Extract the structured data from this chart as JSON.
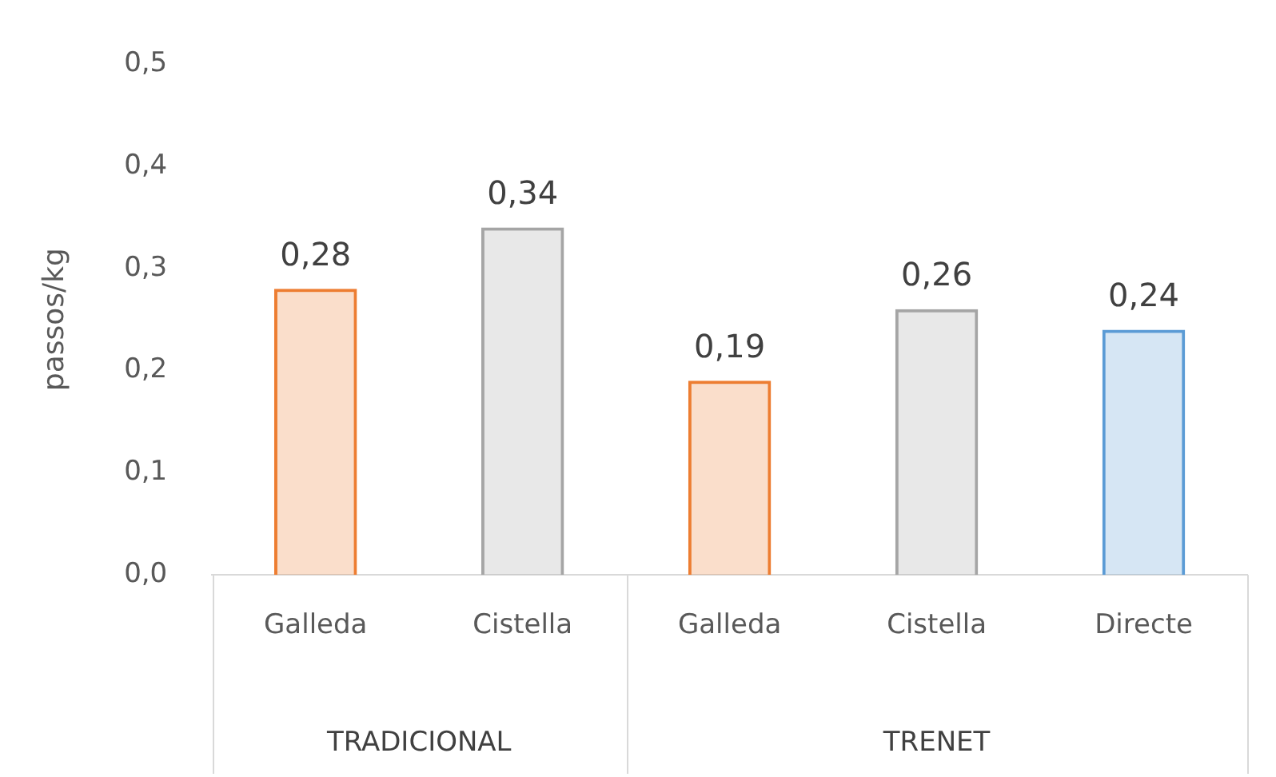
{
  "chart_data": {
    "type": "bar",
    "ylabel": "passos/kg",
    "categories": [
      "Galleda",
      "Cistella",
      "Galleda",
      "Cistella",
      "Directe"
    ],
    "values": [
      0.28,
      0.34,
      0.19,
      0.26,
      0.24
    ],
    "colors": [
      "#ed7d31",
      "#a5a5a5",
      "#ed7d31",
      "#a5a5a5",
      "#5b9bd5"
    ],
    "value_labels": [
      "0,28",
      "0,34",
      "0,19",
      "0,26",
      "0,24"
    ],
    "ylim": [
      0,
      0.5
    ],
    "yticks": [
      {
        "value": 0,
        "label": "0,0"
      },
      {
        "value": 0.1,
        "label": "0,1"
      },
      {
        "value": 0.2,
        "label": "0,2"
      },
      {
        "value": 0.3,
        "label": "0,3"
      },
      {
        "value": 0.4,
        "label": "0,4"
      },
      {
        "value": 0.5,
        "label": "0,5"
      }
    ],
    "annotations": [
      "TRADICIONAL",
      "TRENET"
    ],
    "grid": false,
    "legend": false
  }
}
